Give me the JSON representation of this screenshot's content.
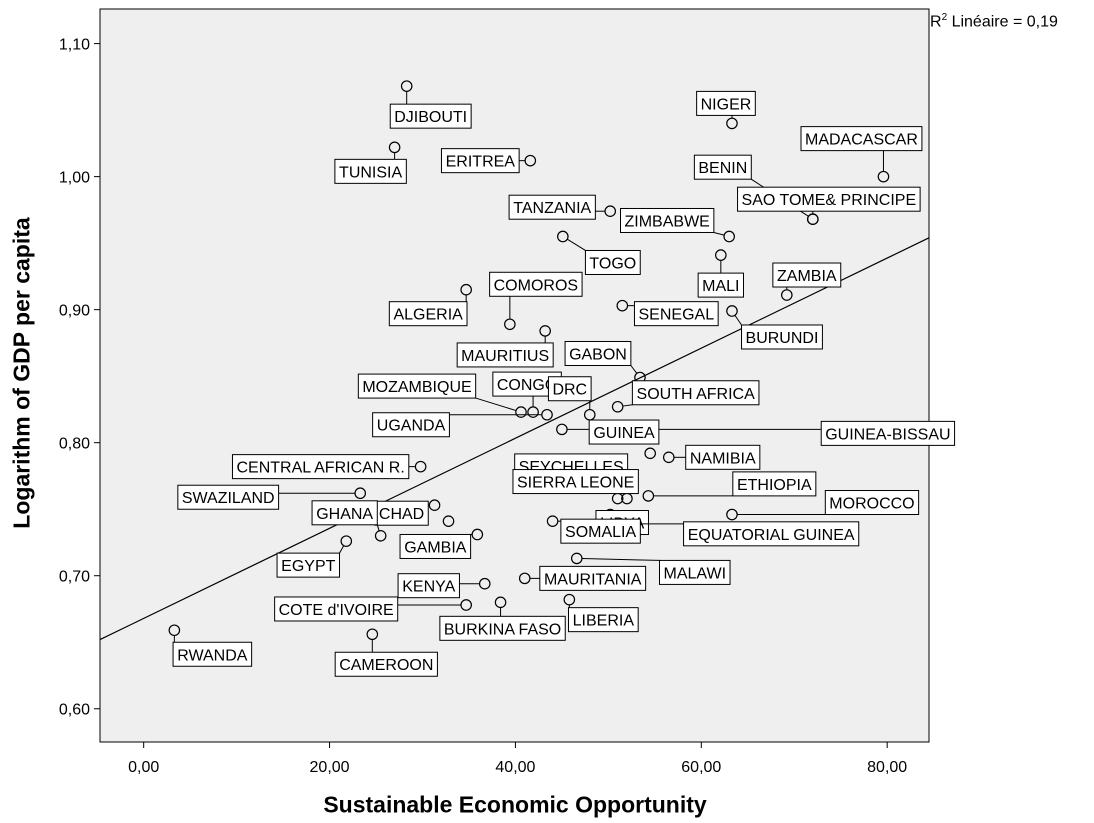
{
  "chart_data": {
    "type": "scatter",
    "xlabel": "Sustainable Economic Opportunity",
    "ylabel": "Logarithm of GDP per capita",
    "xlim": [
      -4.7,
      84.5
    ],
    "ylim": [
      0.575,
      1.126
    ],
    "xticks": [
      0,
      20,
      40,
      60,
      80
    ],
    "xtick_labels": [
      "0,00",
      "20,00",
      "40,00",
      "60,00",
      "80,00"
    ],
    "yticks": [
      0.6,
      0.7,
      0.8,
      0.9,
      1.0,
      1.1
    ],
    "ytick_labels": [
      "0,60",
      "0,70",
      "0,80",
      "0,90",
      "1,00",
      "1,10"
    ],
    "fit_line": {
      "label_prefix": "R",
      "label_sup": "2",
      "label_suffix": " Linéaire = 0,19",
      "start": [
        -4.7,
        0.652
      ],
      "end": [
        84.5,
        0.954
      ]
    },
    "background": "#efefef",
    "points": [
      {
        "name": "DJIBOUTI",
        "x": 28.3,
        "y": 1.068
      },
      {
        "name": "NIGER",
        "x": 63.3,
        "y": 1.04
      },
      {
        "name": "TUNISIA",
        "x": 27.0,
        "y": 1.022
      },
      {
        "name": "ERITREA",
        "x": 41.6,
        "y": 1.012
      },
      {
        "name": "MADACASCAR",
        "x": 79.6,
        "y": 1.0
      },
      {
        "name": "BENIN",
        "x": 72.0,
        "y": 0.968
      },
      {
        "name": "SAO TOME& PRINCIPE",
        "x": 72.0,
        "y": 0.968
      },
      {
        "name": "TANZANIA",
        "x": 50.2,
        "y": 0.974
      },
      {
        "name": "ZIMBABWE",
        "x": 63.0,
        "y": 0.955
      },
      {
        "name": "TOGO",
        "x": 45.1,
        "y": 0.955
      },
      {
        "name": "MALI",
        "x": 62.1,
        "y": 0.941
      },
      {
        "name": "ZAMBIA",
        "x": 69.2,
        "y": 0.911
      },
      {
        "name": "ALGERIA",
        "x": 34.7,
        "y": 0.915
      },
      {
        "name": "COMOROS",
        "x": 39.4,
        "y": 0.889
      },
      {
        "name": "SENEGAL",
        "x": 51.5,
        "y": 0.903
      },
      {
        "name": "BURUNDI",
        "x": 63.3,
        "y": 0.899
      },
      {
        "name": "MAURITIUS",
        "x": 43.2,
        "y": 0.884
      },
      {
        "name": "GABON",
        "x": 53.4,
        "y": 0.849
      },
      {
        "name": "MOZAMBIQUE",
        "x": 40.6,
        "y": 0.823
      },
      {
        "name": "CONGO",
        "x": 41.9,
        "y": 0.823
      },
      {
        "name": "UGANDA",
        "x": 43.4,
        "y": 0.821
      },
      {
        "name": "DRC",
        "x": 48.0,
        "y": 0.821
      },
      {
        "name": "SOUTH AFRICA",
        "x": 51.0,
        "y": 0.827
      },
      {
        "name": "GUINEA-BISSAU",
        "x": 45.0,
        "y": 0.81
      },
      {
        "name": "GUINEA",
        "x": 50.5,
        "y": 0.805
      },
      {
        "name": "NAMIBIA",
        "x": 54.5,
        "y": 0.792
      },
      {
        "name": "Namibia-pt2",
        "x": 56.5,
        "y": 0.789
      },
      {
        "name": "CENTRAL AFRICAN R.",
        "x": 29.8,
        "y": 0.782
      },
      {
        "name": "SEYCHELLES",
        "x": 41.6,
        "y": 0.775
      },
      {
        "name": "Seychelles-pt2",
        "x": 50.3,
        "y": 0.766
      },
      {
        "name": "SWAZILAND",
        "x": 23.3,
        "y": 0.762
      },
      {
        "name": "CHAD",
        "x": 31.3,
        "y": 0.753
      },
      {
        "name": "SIERRA LEONE",
        "x": 51.0,
        "y": 0.758
      },
      {
        "name": "ETHIOPIA",
        "x": 54.3,
        "y": 0.76
      },
      {
        "name": "ETHIOPIA-pt2",
        "x": 52.0,
        "y": 0.758
      },
      {
        "name": "MOROCCO",
        "x": 63.3,
        "y": 0.746
      },
      {
        "name": "LIBYA",
        "x": 50.2,
        "y": 0.746
      },
      {
        "name": "EQUATORIAL GUINEA",
        "x": 50.3,
        "y": 0.739
      },
      {
        "name": "GHANA",
        "x": 32.8,
        "y": 0.741
      },
      {
        "name": "SOMALIA",
        "x": 44.0,
        "y": 0.741
      },
      {
        "name": "GAMBIA",
        "x": 35.9,
        "y": 0.731
      },
      {
        "name": "Gambia-pt2",
        "x": 25.5,
        "y": 0.73
      },
      {
        "name": "EGYPT",
        "x": 21.8,
        "y": 0.726
      },
      {
        "name": "MALAWI",
        "x": 46.6,
        "y": 0.713
      },
      {
        "name": "KENYA",
        "x": 36.7,
        "y": 0.694
      },
      {
        "name": "MAURITANIA",
        "x": 41.0,
        "y": 0.698
      },
      {
        "name": "COTE d'IVOIRE",
        "x": 34.7,
        "y": 0.678
      },
      {
        "name": "BURKINA FASO",
        "x": 38.4,
        "y": 0.68
      },
      {
        "name": "LIBERIA",
        "x": 45.8,
        "y": 0.682
      },
      {
        "name": "RWANDA",
        "x": 3.3,
        "y": 0.659
      },
      {
        "name": "CAMEROON",
        "x": 24.6,
        "y": 0.656
      }
    ],
    "labels": [
      {
        "text": "DJIBOUTI",
        "x": 28.3,
        "y": 1.068
      },
      {
        "text": "NIGER",
        "x": 63.3,
        "y": 1.04
      },
      {
        "text": "TUNISIA",
        "x": 27.0,
        "y": 1.022
      },
      {
        "text": "ERITREA",
        "x": 41.6,
        "y": 1.012
      },
      {
        "text": "MADACASCAR",
        "x": 79.6,
        "y": 1.0
      },
      {
        "text": "BENIN",
        "x": 72.0,
        "y": 0.968
      },
      {
        "text": "SAO TOME& PRINCIPE",
        "x": 72.0,
        "y": 0.968
      },
      {
        "text": "TANZANIA",
        "x": 50.2,
        "y": 0.974
      },
      {
        "text": "ZIMBABWE",
        "x": 63.0,
        "y": 0.955
      },
      {
        "text": "TOGO",
        "x": 45.1,
        "y": 0.955
      },
      {
        "text": "MALI",
        "x": 62.1,
        "y": 0.941
      },
      {
        "text": "ZAMBIA",
        "x": 69.2,
        "y": 0.911
      },
      {
        "text": "ALGERIA",
        "x": 34.7,
        "y": 0.915
      },
      {
        "text": "COMOROS",
        "x": 39.4,
        "y": 0.889
      },
      {
        "text": "SENEGAL",
        "x": 51.5,
        "y": 0.903
      },
      {
        "text": "BURUNDI",
        "x": 63.3,
        "y": 0.899
      },
      {
        "text": "MAURITIUS",
        "x": 43.2,
        "y": 0.884
      },
      {
        "text": "GABON",
        "x": 53.4,
        "y": 0.849
      },
      {
        "text": "MOZAMBIQUE",
        "x": 40.6,
        "y": 0.823
      },
      {
        "text": "CONGO",
        "x": 41.9,
        "y": 0.823
      },
      {
        "text": "UGANDA",
        "x": 43.4,
        "y": 0.821
      },
      {
        "text": "DRC",
        "x": 48.0,
        "y": 0.821
      },
      {
        "text": "SOUTH AFRICA",
        "x": 51.0,
        "y": 0.827
      },
      {
        "text": "GUINEA-BISSAU",
        "x": 45.0,
        "y": 0.81
      },
      {
        "text": "GUINEA",
        "x": 50.5,
        "y": 0.805
      },
      {
        "text": "NAMIBIA",
        "x": 56.5,
        "y": 0.789
      },
      {
        "text": "CENTRAL AFRICAN R.",
        "x": 29.8,
        "y": 0.782
      },
      {
        "text": "SEYCHELLES",
        "x": 50.3,
        "y": 0.766
      },
      {
        "text": "SWAZILAND",
        "x": 23.3,
        "y": 0.762
      },
      {
        "text": "CHAD",
        "x": 31.3,
        "y": 0.753
      },
      {
        "text": "SIERRA LEONE",
        "x": 51.0,
        "y": 0.758
      },
      {
        "text": "ETHIOPIA",
        "x": 54.3,
        "y": 0.76
      },
      {
        "text": "MOROCCO",
        "x": 63.3,
        "y": 0.746
      },
      {
        "text": "LIBYA",
        "x": 50.2,
        "y": 0.746
      },
      {
        "text": "EQUATORIAL GUINEA",
        "x": 50.3,
        "y": 0.739
      },
      {
        "text": "GHANA",
        "x": 25.5,
        "y": 0.73
      },
      {
        "text": "SOMALIA",
        "x": 44.0,
        "y": 0.741
      },
      {
        "text": "GAMBIA",
        "x": 35.9,
        "y": 0.731
      },
      {
        "text": "EGYPT",
        "x": 21.8,
        "y": 0.726
      },
      {
        "text": "MALAWI",
        "x": 46.6,
        "y": 0.713
      },
      {
        "text": "KENYA",
        "x": 36.7,
        "y": 0.694
      },
      {
        "text": "MAURITANIA",
        "x": 41.0,
        "y": 0.698
      },
      {
        "text": "COTE d'IVOIRE",
        "x": 34.7,
        "y": 0.678
      },
      {
        "text": "BURKINA FASO",
        "x": 38.4,
        "y": 0.68
      },
      {
        "text": "LIBERIA",
        "x": 45.8,
        "y": 0.682
      },
      {
        "text": "RWANDA",
        "x": 3.3,
        "y": 0.659
      },
      {
        "text": "CAMEROON",
        "x": 24.6,
        "y": 0.656
      }
    ]
  }
}
